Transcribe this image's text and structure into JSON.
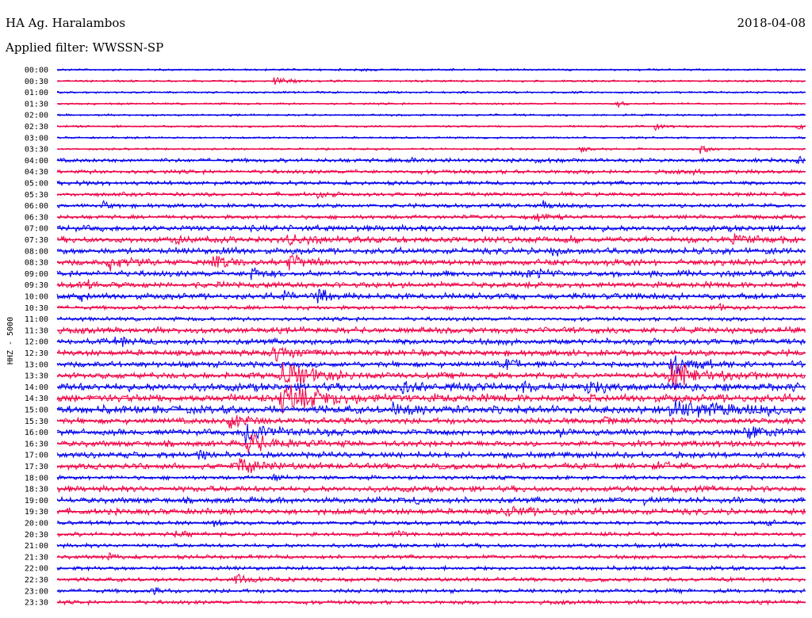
{
  "header": {
    "station": "HA Ag. Haralambos",
    "date": "2018-04-08",
    "filter": "Applied filter: WWSSN-SP"
  },
  "chart_data": {
    "type": "line",
    "title": "HA Ag. Haralambos",
    "subtitle": "Applied filter: WWSSN-SP",
    "ylabel": "HHZ - 5000",
    "xlabel": "",
    "grid": false,
    "series_colors": [
      "#0000ee",
      "#ee0044"
    ],
    "rows": [
      "00:00",
      "00:30",
      "01:00",
      "01:30",
      "02:00",
      "02:30",
      "03:00",
      "03:30",
      "04:00",
      "04:30",
      "05:00",
      "05:30",
      "06:00",
      "06:30",
      "07:00",
      "07:30",
      "08:00",
      "08:30",
      "09:00",
      "09:30",
      "10:00",
      "10:30",
      "11:00",
      "11:30",
      "12:00",
      "12:30",
      "13:00",
      "13:30",
      "14:00",
      "14:30",
      "15:00",
      "15:30",
      "16:00",
      "16:30",
      "17:00",
      "17:30",
      "18:00",
      "18:30",
      "19:00",
      "19:30",
      "20:00",
      "20:30",
      "21:00",
      "21:30",
      "22:00",
      "22:30",
      "23:00",
      "23:30"
    ],
    "noise_level": [
      1,
      1,
      1,
      1,
      1,
      1,
      1,
      1,
      2,
      2,
      2,
      2,
      2,
      2,
      3,
      3,
      3,
      3,
      3,
      3,
      3,
      2,
      2,
      3,
      3,
      3,
      3,
      3,
      4,
      4,
      4,
      3,
      3,
      3,
      3,
      3,
      2,
      3,
      3,
      3,
      2,
      2,
      2,
      2,
      2,
      2,
      2,
      2
    ],
    "events": [
      {
        "row": 0,
        "t": 0.4,
        "amp": 4,
        "dur": 0.01
      },
      {
        "row": 1,
        "t": 0.29,
        "amp": 5,
        "dur": 0.02
      },
      {
        "row": 3,
        "t": 0.75,
        "amp": 3,
        "dur": 0.01
      },
      {
        "row": 5,
        "t": 0.8,
        "amp": 5,
        "dur": 0.01
      },
      {
        "row": 5,
        "t": 0.99,
        "amp": 5,
        "dur": 0.01
      },
      {
        "row": 7,
        "t": 0.7,
        "amp": 5,
        "dur": 0.01
      },
      {
        "row": 7,
        "t": 0.86,
        "amp": 6,
        "dur": 0.01
      },
      {
        "row": 8,
        "t": 0.47,
        "amp": 6,
        "dur": 0.01
      },
      {
        "row": 8,
        "t": 0.64,
        "amp": 6,
        "dur": 0.01
      },
      {
        "row": 8,
        "t": 0.99,
        "amp": 6,
        "dur": 0.01
      },
      {
        "row": 9,
        "t": 0.85,
        "amp": 5,
        "dur": 0.01
      },
      {
        "row": 10,
        "t": 0.03,
        "amp": 4,
        "dur": 0.01
      },
      {
        "row": 11,
        "t": 0.35,
        "amp": 5,
        "dur": 0.01
      },
      {
        "row": 12,
        "t": 0.06,
        "amp": 6,
        "dur": 0.01
      },
      {
        "row": 12,
        "t": 0.65,
        "amp": 7,
        "dur": 0.01
      },
      {
        "row": 13,
        "t": 0.64,
        "amp": 7,
        "dur": 0.01
      },
      {
        "row": 15,
        "t": 0.16,
        "amp": 8,
        "dur": 0.01
      },
      {
        "row": 15,
        "t": 0.31,
        "amp": 9,
        "dur": 0.02
      },
      {
        "row": 15,
        "t": 0.68,
        "amp": 7,
        "dur": 0.01
      },
      {
        "row": 15,
        "t": 0.9,
        "amp": 6,
        "dur": 0.05
      },
      {
        "row": 16,
        "t": 0.22,
        "amp": 8,
        "dur": 0.01
      },
      {
        "row": 16,
        "t": 0.66,
        "amp": 8,
        "dur": 0.01
      },
      {
        "row": 17,
        "t": 0.07,
        "amp": 12,
        "dur": 0.015
      },
      {
        "row": 17,
        "t": 0.21,
        "amp": 9,
        "dur": 0.015
      },
      {
        "row": 17,
        "t": 0.31,
        "amp": 14,
        "dur": 0.015
      },
      {
        "row": 18,
        "t": 0.26,
        "amp": 12,
        "dur": 0.01
      },
      {
        "row": 18,
        "t": 0.63,
        "amp": 9,
        "dur": 0.015
      },
      {
        "row": 19,
        "t": 0.04,
        "amp": 6,
        "dur": 0.01
      },
      {
        "row": 20,
        "t": 0.3,
        "amp": 12,
        "dur": 0.015
      },
      {
        "row": 20,
        "t": 0.35,
        "amp": 14,
        "dur": 0.01
      },
      {
        "row": 20,
        "t": 0.03,
        "amp": 7,
        "dur": 0.01
      },
      {
        "row": 21,
        "t": 0.88,
        "amp": 7,
        "dur": 0.01
      },
      {
        "row": 24,
        "t": 0.08,
        "amp": 7,
        "dur": 0.015
      },
      {
        "row": 25,
        "t": 0.29,
        "amp": 12,
        "dur": 0.03
      },
      {
        "row": 26,
        "t": 0.6,
        "amp": 6,
        "dur": 0.02
      },
      {
        "row": 26,
        "t": 0.82,
        "amp": 18,
        "dur": 0.03
      },
      {
        "row": 27,
        "t": 0.3,
        "amp": 22,
        "dur": 0.04
      },
      {
        "row": 27,
        "t": 0.82,
        "amp": 22,
        "dur": 0.04
      },
      {
        "row": 28,
        "t": 0.46,
        "amp": 8,
        "dur": 0.015
      },
      {
        "row": 28,
        "t": 0.62,
        "amp": 7,
        "dur": 0.015
      },
      {
        "row": 28,
        "t": 0.71,
        "amp": 8,
        "dur": 0.015
      },
      {
        "row": 29,
        "t": 0.3,
        "amp": 20,
        "dur": 0.05
      },
      {
        "row": 30,
        "t": 0.45,
        "amp": 8,
        "dur": 0.03
      },
      {
        "row": 30,
        "t": 0.82,
        "amp": 12,
        "dur": 0.08
      },
      {
        "row": 31,
        "t": 0.23,
        "amp": 10,
        "dur": 0.03
      },
      {
        "row": 31,
        "t": 0.73,
        "amp": 6,
        "dur": 0.02
      },
      {
        "row": 32,
        "t": 0.25,
        "amp": 16,
        "dur": 0.04
      },
      {
        "row": 32,
        "t": 0.67,
        "amp": 10,
        "dur": 0.01
      },
      {
        "row": 32,
        "t": 0.92,
        "amp": 6,
        "dur": 0.05
      },
      {
        "row": 33,
        "t": 0.25,
        "amp": 14,
        "dur": 0.04
      },
      {
        "row": 34,
        "t": 0.19,
        "amp": 7,
        "dur": 0.015
      },
      {
        "row": 35,
        "t": 0.24,
        "amp": 12,
        "dur": 0.03
      },
      {
        "row": 35,
        "t": 0.8,
        "amp": 7,
        "dur": 0.015
      },
      {
        "row": 36,
        "t": 0.29,
        "amp": 5,
        "dur": 0.01
      },
      {
        "row": 38,
        "t": 0.48,
        "amp": 5,
        "dur": 0.01
      },
      {
        "row": 38,
        "t": 0.78,
        "amp": 5,
        "dur": 0.01
      },
      {
        "row": 39,
        "t": 0.6,
        "amp": 5,
        "dur": 0.05
      },
      {
        "row": 40,
        "t": 0.21,
        "amp": 5,
        "dur": 0.01
      },
      {
        "row": 40,
        "t": 0.95,
        "amp": 5,
        "dur": 0.01
      },
      {
        "row": 41,
        "t": 0.16,
        "amp": 5,
        "dur": 0.01
      },
      {
        "row": 41,
        "t": 0.45,
        "amp": 5,
        "dur": 0.01
      },
      {
        "row": 43,
        "t": 0.07,
        "amp": 5,
        "dur": 0.01
      },
      {
        "row": 45,
        "t": 0.24,
        "amp": 12,
        "dur": 0.012
      },
      {
        "row": 46,
        "t": 0.13,
        "amp": 4,
        "dur": 0.01
      }
    ]
  }
}
